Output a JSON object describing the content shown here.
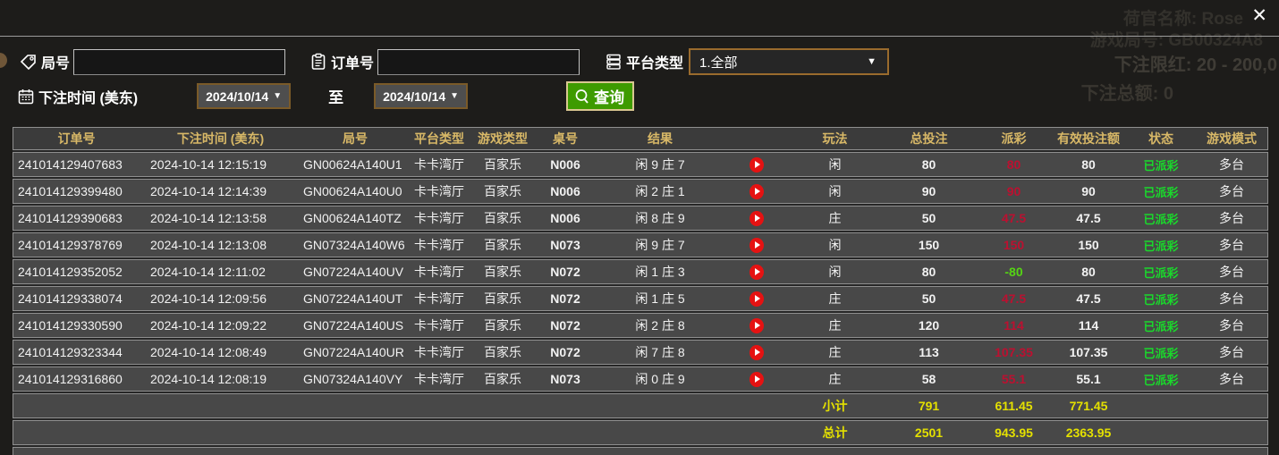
{
  "window": {
    "close_label": "✕",
    "background_remnants": {
      "dealer": "荷官名称: Rose",
      "game_no": "游戏局号: GB00324A8",
      "limit": "下注限红: 20 - 200,0",
      "bet_sum": "下注总额: 0"
    }
  },
  "filters": {
    "game_no_label": "局号",
    "game_no_value": "",
    "order_no_label": "订单号",
    "order_no_value": "",
    "platform_label": "平台类型",
    "platform_value": "1.全部",
    "dropdown_arrow": "▼",
    "bet_time_label": "下注时间 (美东)",
    "date_from": "2024/10/14",
    "date_to": "2024/10/14",
    "date_arrow": "▼",
    "to_label": "至",
    "search_label": "查询"
  },
  "colors": {
    "header_gold": "#d8b867",
    "payout_win_red": "#bc1030",
    "payout_loss_green": "#55d414",
    "status_paid_green": "#19da2b",
    "totals_yellow": "#e4e000",
    "search_green": "#3e9b00",
    "play_icon_red": "#e51212"
  },
  "table": {
    "headers": [
      "订单号",
      "下注时间 (美东)",
      "局号",
      "平台类型",
      "游戏类型",
      "桌号",
      "结果",
      "",
      "玩法",
      "总投注",
      "派彩",
      "有效投注额",
      "状态",
      "游戏模式"
    ],
    "rows": [
      {
        "order": "241014129407683",
        "time": "2024-10-14 12:15:19",
        "game_no": "GN00624A140U1",
        "platform": "卡卡湾厅",
        "game_type": "百家乐",
        "table_no": "N006",
        "result": "闲 9 庄 7",
        "bet_type": "闲",
        "total_bet": "80",
        "payout": "80",
        "payout_sign": "win",
        "valid_bet": "80",
        "status": "已派彩",
        "mode": "多台"
      },
      {
        "order": "241014129399480",
        "time": "2024-10-14 12:14:39",
        "game_no": "GN00624A140U0",
        "platform": "卡卡湾厅",
        "game_type": "百家乐",
        "table_no": "N006",
        "result": "闲 2 庄 1",
        "bet_type": "闲",
        "total_bet": "90",
        "payout": "90",
        "payout_sign": "win",
        "valid_bet": "90",
        "status": "已派彩",
        "mode": "多台"
      },
      {
        "order": "241014129390683",
        "time": "2024-10-14 12:13:58",
        "game_no": "GN00624A140TZ",
        "platform": "卡卡湾厅",
        "game_type": "百家乐",
        "table_no": "N006",
        "result": "闲 8 庄 9",
        "bet_type": "庄",
        "total_bet": "50",
        "payout": "47.5",
        "payout_sign": "win",
        "valid_bet": "47.5",
        "status": "已派彩",
        "mode": "多台"
      },
      {
        "order": "241014129378769",
        "time": "2024-10-14 12:13:08",
        "game_no": "GN07324A140W6",
        "platform": "卡卡湾厅",
        "game_type": "百家乐",
        "table_no": "N073",
        "result": "闲 9 庄 7",
        "bet_type": "闲",
        "total_bet": "150",
        "payout": "150",
        "payout_sign": "win",
        "valid_bet": "150",
        "status": "已派彩",
        "mode": "多台"
      },
      {
        "order": "241014129352052",
        "time": "2024-10-14 12:11:02",
        "game_no": "GN07224A140UV",
        "platform": "卡卡湾厅",
        "game_type": "百家乐",
        "table_no": "N072",
        "result": "闲 1 庄 3",
        "bet_type": "闲",
        "total_bet": "80",
        "payout": "-80",
        "payout_sign": "loss",
        "valid_bet": "80",
        "status": "已派彩",
        "mode": "多台"
      },
      {
        "order": "241014129338074",
        "time": "2024-10-14 12:09:56",
        "game_no": "GN07224A140UT",
        "platform": "卡卡湾厅",
        "game_type": "百家乐",
        "table_no": "N072",
        "result": "闲 1 庄 5",
        "bet_type": "庄",
        "total_bet": "50",
        "payout": "47.5",
        "payout_sign": "win",
        "valid_bet": "47.5",
        "status": "已派彩",
        "mode": "多台"
      },
      {
        "order": "241014129330590",
        "time": "2024-10-14 12:09:22",
        "game_no": "GN07224A140US",
        "platform": "卡卡湾厅",
        "game_type": "百家乐",
        "table_no": "N072",
        "result": "闲 2 庄 8",
        "bet_type": "庄",
        "total_bet": "120",
        "payout": "114",
        "payout_sign": "win",
        "valid_bet": "114",
        "status": "已派彩",
        "mode": "多台"
      },
      {
        "order": "241014129323344",
        "time": "2024-10-14 12:08:49",
        "game_no": "GN07224A140UR",
        "platform": "卡卡湾厅",
        "game_type": "百家乐",
        "table_no": "N072",
        "result": "闲 7 庄 8",
        "bet_type": "庄",
        "total_bet": "113",
        "payout": "107.35",
        "payout_sign": "win",
        "valid_bet": "107.35",
        "status": "已派彩",
        "mode": "多台"
      },
      {
        "order": "241014129316860",
        "time": "2024-10-14 12:08:19",
        "game_no": "GN07324A140VY",
        "platform": "卡卡湾厅",
        "game_type": "百家乐",
        "table_no": "N073",
        "result": "闲 0 庄 9",
        "bet_type": "庄",
        "total_bet": "58",
        "payout": "55.1",
        "payout_sign": "win",
        "valid_bet": "55.1",
        "status": "已派彩",
        "mode": "多台"
      }
    ],
    "subtotal": {
      "label": "小计",
      "total_bet": "791",
      "payout": "611.45",
      "valid_bet": "771.45"
    },
    "total": {
      "label": "总计",
      "total_bet": "2501",
      "payout": "943.95",
      "valid_bet": "2363.95"
    }
  }
}
